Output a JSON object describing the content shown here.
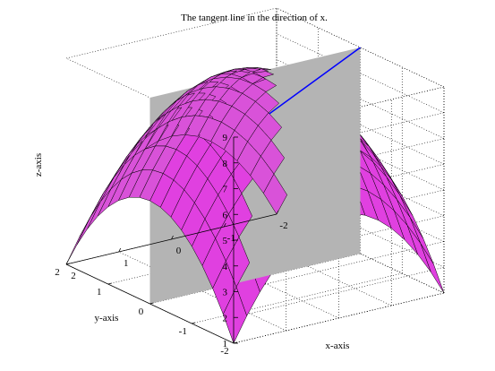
{
  "chart_data": {
    "type": "surface",
    "title": "The tangent line in the direction of x.",
    "xlabel": "x-axis",
    "ylabel": "y-axis",
    "zlabel": "z-axis",
    "xlim": [
      -2,
      2
    ],
    "ylim": [
      -2,
      2
    ],
    "zlim": [
      1,
      9
    ],
    "x_ticks": [
      2,
      1,
      0,
      -1,
      -2
    ],
    "y_ticks": [
      -2,
      -1,
      0,
      1,
      2
    ],
    "z_ticks": [
      1,
      2,
      3,
      4,
      5,
      6,
      7,
      8,
      9
    ],
    "surface": {
      "function": "z = 9 - x^2 - y^2",
      "x_range": [
        -2,
        2
      ],
      "y_range": [
        -2,
        2
      ],
      "grid_lines": 16,
      "color": "#e040e0"
    },
    "plane": {
      "y": 0,
      "color": "#b4b4b4"
    },
    "tangent_line": {
      "color": "#0000ff",
      "points": [
        [
          -2,
          0,
          9
        ],
        [
          2,
          0,
          5
        ]
      ]
    },
    "grid": true,
    "box": true
  }
}
